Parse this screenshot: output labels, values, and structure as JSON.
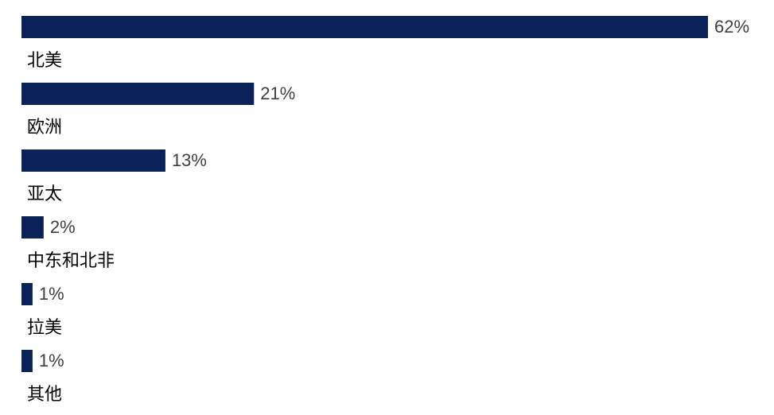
{
  "chart_data": {
    "type": "bar",
    "orientation": "horizontal",
    "categories": [
      "北美",
      "欧洲",
      "亚太",
      "中东和北非",
      "拉美",
      "其他"
    ],
    "values": [
      62,
      21,
      13,
      2,
      1,
      1
    ],
    "value_labels": [
      "62%",
      "21%",
      "13%",
      "2%",
      "1%",
      "1%"
    ],
    "color": "#0b2259"
  }
}
